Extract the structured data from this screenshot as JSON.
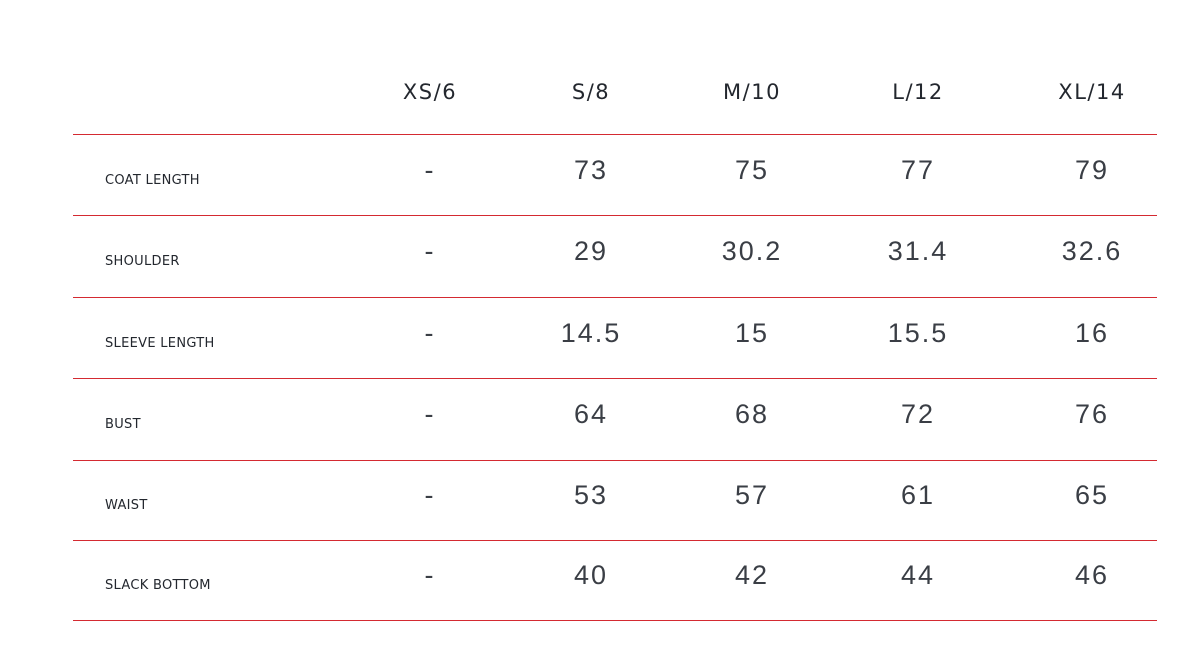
{
  "colors": {
    "divider": "#d42a31",
    "text": "#23272e"
  },
  "table": {
    "columns": [
      "XS/6",
      "S/8",
      "M/10",
      "L/12",
      "XL/14"
    ],
    "rows": [
      {
        "label": "COAT LENGTH",
        "values": [
          "-",
          "73",
          "75",
          "77",
          "79"
        ]
      },
      {
        "label": "SHOULDER",
        "values": [
          "-",
          "29",
          "30.2",
          "31.4",
          "32.6"
        ]
      },
      {
        "label": "SLEEVE LENGTH",
        "values": [
          "-",
          "14.5",
          "15",
          "15.5",
          "16"
        ]
      },
      {
        "label": "BUST",
        "values": [
          "-",
          "64",
          "68",
          "72",
          "76"
        ]
      },
      {
        "label": "WAIST",
        "values": [
          "-",
          "53",
          "57",
          "61",
          "65"
        ]
      },
      {
        "label": "SLACK BOTTOM",
        "values": [
          "-",
          "40",
          "42",
          "44",
          "46"
        ]
      }
    ]
  }
}
